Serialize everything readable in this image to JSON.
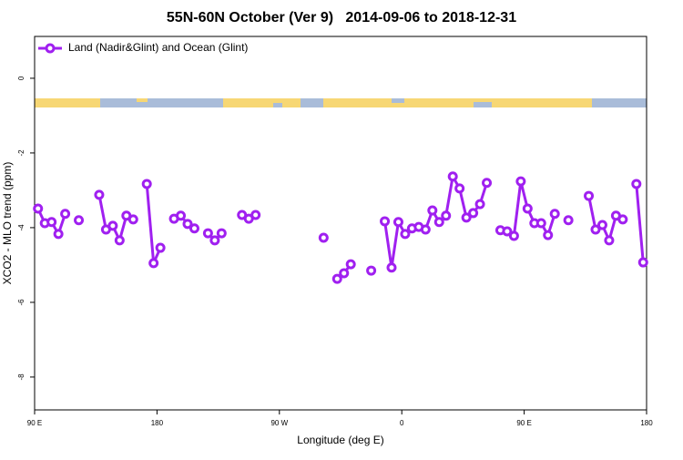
{
  "chart_data": {
    "type": "line",
    "title": "55N-60N October (Ver 9)   2014-09-06 to 2018-12-31",
    "x_label": "Longitude (deg E)",
    "y_label": "XCO2 - MLO trend (ppm)",
    "legend": "top-left",
    "x": [
      92.5,
      97.5,
      102.5,
      107.5,
      112.5,
      117.5,
      122.5,
      127.5,
      132.5,
      137.5,
      142.5,
      147.5,
      152.5,
      157.5,
      162.5,
      167.5,
      172.5,
      177.5,
      182.5,
      187.5,
      192.5,
      197.5,
      202.5,
      207.5,
      212.5,
      217.5,
      222.5,
      227.5,
      232.5,
      237.5,
      242.5,
      247.5,
      252.5,
      257.5,
      262.5,
      267.5,
      272.5,
      277.5,
      282.5,
      287.5,
      292.5,
      297.5,
      302.5,
      307.5,
      312.5,
      317.5,
      322.5,
      327.5,
      332.5,
      337.5,
      342.5,
      347.5,
      352.5,
      357.5,
      362.5,
      367.5,
      372.5,
      377.5,
      382.5,
      387.5,
      392.5,
      397.5,
      402.5,
      407.5,
      412.5,
      417.5,
      422.5,
      427.5,
      432.5,
      437.5,
      442.5,
      447.5,
      452.5,
      457.5,
      462.5,
      467.5,
      472.5,
      477.5,
      482.5,
      487.5,
      492.5,
      497.5,
      502.5,
      507.5,
      512.5,
      517.5,
      522.5,
      527.5,
      532.5,
      537.5
    ],
    "series": [
      {
        "name": "Land (Nadir&Glint) and Ocean (Glint)",
        "color": "#a020f0",
        "values": [
          -3.49,
          -3.88,
          -3.85,
          -4.17,
          -3.63,
          null,
          -3.8,
          null,
          null,
          -3.12,
          -4.05,
          -3.95,
          -4.34,
          -3.68,
          -3.78,
          null,
          -2.83,
          -4.95,
          -4.54,
          null,
          -3.76,
          -3.68,
          -3.9,
          -4.02,
          null,
          -4.15,
          -4.34,
          -4.15,
          null,
          null,
          -3.66,
          -3.76,
          -3.66,
          null,
          null,
          null,
          null,
          null,
          null,
          null,
          null,
          null,
          -4.27,
          null,
          -5.37,
          -5.22,
          -4.98,
          null,
          null,
          -5.15,
          null,
          -3.83,
          -5.07,
          -3.85,
          -4.17,
          -4.02,
          -3.98,
          -4.05,
          -3.54,
          -3.85,
          -3.68,
          -2.63,
          -2.95,
          -3.73,
          -3.61,
          -3.37,
          -2.8,
          null,
          -4.07,
          -4.1,
          -4.22,
          -2.76,
          -3.49,
          -3.88,
          -3.88,
          -4.2,
          -3.63,
          null,
          -3.8,
          null,
          null,
          -3.15,
          -4.05,
          -3.93,
          -4.34,
          -3.68,
          -3.78,
          null,
          -2.83,
          -4.93
        ]
      }
    ],
    "xlim": [
      90,
      540
    ],
    "xticks": [
      {
        "value": 90,
        "label": "90 E"
      },
      180,
      {
        "value": 270,
        "label": "90 W"
      },
      {
        "value": 360,
        "label": "0"
      },
      {
        "value": 450,
        "label": "90 E"
      },
      {
        "value": 540,
        "label": "180"
      }
    ],
    "ylim": [
      -8.88,
      1.12
    ],
    "yticks": [
      0,
      -2,
      -4,
      -6,
      -8
    ]
  }
}
